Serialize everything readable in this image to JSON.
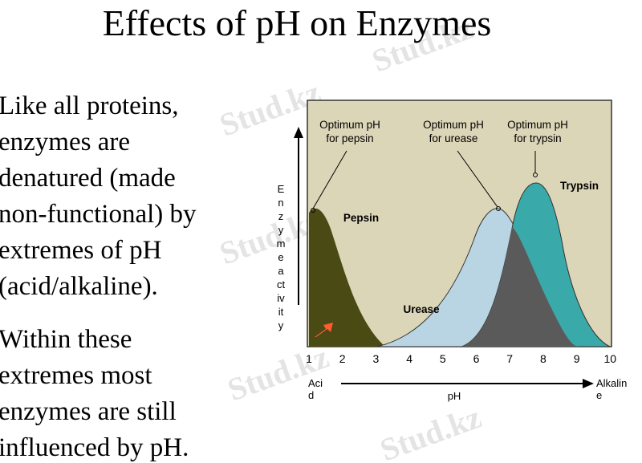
{
  "slide": {
    "title": "Effects of pH on Enzymes",
    "paragraphs": [
      [
        "Like all proteins,",
        "enzymes are",
        "denatured (made",
        "non-functional) by",
        "extremes of pH",
        "(acid/alkaline)."
      ],
      [
        "Within these",
        "extremes most",
        "enzymes are still",
        "influenced by pH."
      ]
    ],
    "watermark": "Stud.kz",
    "diagram": {
      "y_axis_label": [
        "E",
        "n",
        "z",
        "y",
        "m",
        "e",
        "a",
        "ct",
        "iv",
        "it",
        "y"
      ],
      "x_ticks": [
        "1",
        "2",
        "3",
        "4",
        "5",
        "6",
        "7",
        "8",
        "9",
        "10"
      ],
      "x_axis_label": "pH",
      "x_left_label": [
        "Aci",
        "d"
      ],
      "x_right_label": [
        "Alkalin",
        "e"
      ],
      "annotations": [
        [
          "Optimum pH",
          "for pepsin"
        ],
        [
          "Optimum pH",
          "for urease"
        ],
        [
          "Optimum pH",
          "for trypsin"
        ]
      ],
      "curve_labels": [
        "Pepsin",
        "Urease",
        "Trypsin"
      ]
    }
  }
}
